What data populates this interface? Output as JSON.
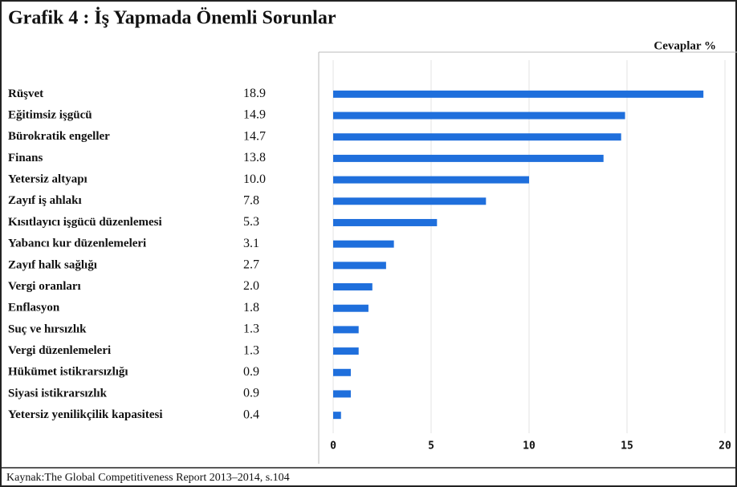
{
  "chart_data": {
    "type": "barh",
    "title": "Grafik 4 : İş Yapmada Önemli Sorunlar",
    "axis_label": "Cevaplar %",
    "categories": [
      "Rüşvet",
      "Eğitimsiz işgücü",
      "Bürokratik engeller",
      "Finans",
      "Yetersiz altyapı",
      "Zayıf iş ahlakı",
      "Kısıtlayıcı işgücü düzenlemesi",
      "Yabancı kur düzenlemeleri",
      "Zayıf halk sağlığı",
      "Vergi oranları",
      "Enflasyon",
      "Suç ve hırsızlık",
      "Vergi düzenlemeleri",
      "Hükümet istikrarsızlığı",
      "Siyasi istikrarsızlık",
      "Yetersiz yenilikçilik kapasitesi"
    ],
    "values": [
      18.9,
      14.9,
      14.7,
      13.8,
      10.0,
      7.8,
      5.3,
      3.1,
      2.7,
      2.0,
      1.8,
      1.3,
      1.3,
      0.9,
      0.9,
      0.4
    ],
    "value_labels": [
      "18.9",
      "14.9",
      "14.7",
      "13.8",
      "10.0",
      "7.8",
      "5.3",
      "3.1",
      "2.7",
      "2.0",
      "1.8",
      "1.3",
      "1.3",
      "0.9",
      "0.9",
      "0.4"
    ],
    "color": "#1f6fdc",
    "xlim": [
      0,
      20
    ],
    "xticks": [
      0,
      5,
      10,
      15,
      20
    ],
    "grid": true,
    "source": "Kaynak:The Global Competitiveness Report 2013–2014, s.104"
  }
}
